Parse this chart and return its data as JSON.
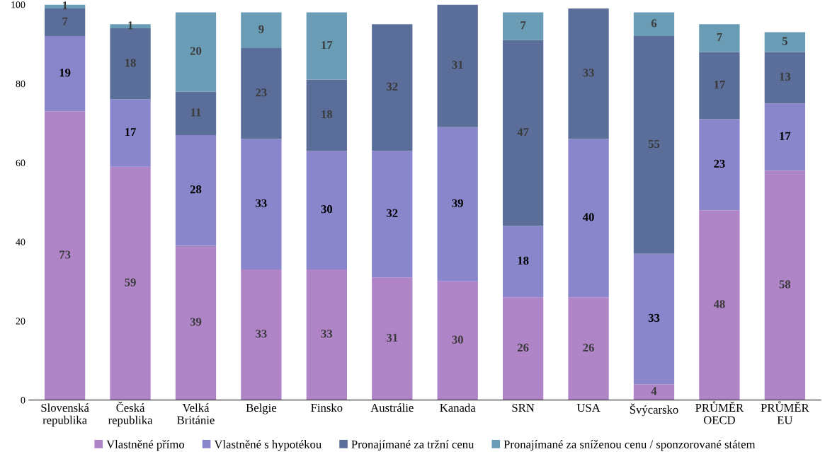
{
  "chart_data": {
    "type": "bar",
    "stacked": true,
    "data_labels": true,
    "legend": "bottom",
    "grid": false,
    "categories": [
      "Slovenská\nrepublika",
      "Česká\nrepublika",
      "Velká\nBritánie",
      "Belgie",
      "Finsko",
      "Austrálie",
      "Kanada",
      "SRN",
      "USA",
      "Švýcarsko",
      "PRŮMĚR\nOECD",
      "PRŮMĚR\nEU"
    ],
    "series": [
      {
        "name": "Vlastněné přímo",
        "color": "#b085c8",
        "values": [
          73,
          59,
          39,
          33,
          33,
          31,
          30,
          26,
          26,
          4,
          48,
          58
        ]
      },
      {
        "name": "Vlastněné s hypotékou",
        "color": "#8a86cc",
        "values": [
          19,
          17,
          28,
          33,
          30,
          32,
          39,
          18,
          40,
          33,
          23,
          17
        ]
      },
      {
        "name": "Pronajímané za tržní cenu",
        "color": "#5b6e99",
        "values": [
          7,
          18,
          11,
          23,
          18,
          32,
          31,
          47,
          33,
          55,
          17,
          13
        ]
      },
      {
        "name": "Pronajímané za sníženou cenu / sponzorované státem",
        "color": "#6a9cb5",
        "values": [
          1,
          1,
          20,
          9,
          17,
          null,
          null,
          7,
          null,
          6,
          7,
          5
        ]
      }
    ],
    "ylim": [
      0,
      100
    ],
    "yticks": [
      0,
      20,
      40,
      60,
      80,
      100
    ]
  }
}
